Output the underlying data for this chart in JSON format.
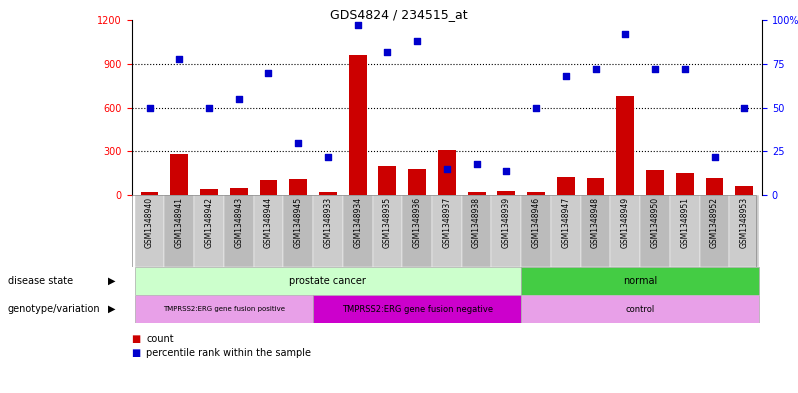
{
  "title": "GDS4824 / 234515_at",
  "samples": [
    "GSM1348940",
    "GSM1348941",
    "GSM1348942",
    "GSM1348943",
    "GSM1348944",
    "GSM1348945",
    "GSM1348933",
    "GSM1348934",
    "GSM1348935",
    "GSM1348936",
    "GSM1348937",
    "GSM1348938",
    "GSM1348939",
    "GSM1348946",
    "GSM1348947",
    "GSM1348948",
    "GSM1348949",
    "GSM1348950",
    "GSM1348951",
    "GSM1348952",
    "GSM1348953"
  ],
  "counts": [
    18,
    280,
    40,
    45,
    100,
    110,
    18,
    960,
    200,
    180,
    310,
    20,
    30,
    20,
    125,
    115,
    680,
    170,
    150,
    120,
    60
  ],
  "percentiles": [
    50,
    78,
    50,
    55,
    70,
    30,
    22,
    97,
    82,
    88,
    15,
    18,
    14,
    50,
    68,
    72,
    92,
    72,
    72,
    22,
    50
  ],
  "disease_state_groups": [
    {
      "label": "prostate cancer",
      "start": 0,
      "end": 12,
      "color": "#ccffcc"
    },
    {
      "label": "normal",
      "start": 13,
      "end": 20,
      "color": "#44cc44"
    }
  ],
  "genotype_groups": [
    {
      "label": "TMPRSS2:ERG gene fusion positive",
      "start": 0,
      "end": 5,
      "color": "#ddaadd"
    },
    {
      "label": "TMPRSS2:ERG gene fusion negative",
      "start": 6,
      "end": 12,
      "color": "#dd44dd"
    },
    {
      "label": "control",
      "start": 13,
      "end": 20,
      "color": "#ddaadd"
    }
  ],
  "left_ylim": [
    0,
    1200
  ],
  "left_yticks": [
    0,
    300,
    600,
    900,
    1200
  ],
  "right_ylim": [
    0,
    100
  ],
  "right_yticks": [
    0,
    25,
    50,
    75,
    100
  ],
  "bar_color": "#cc0000",
  "dot_color": "#0000cc",
  "background_color": "#ffffff",
  "label_disease_state": "disease state",
  "label_genotype": "genotype/variation",
  "legend_count": "count",
  "legend_percentile": "percentile rank within the sample",
  "sample_box_colors": [
    "#cccccc",
    "#bbbbbb"
  ]
}
